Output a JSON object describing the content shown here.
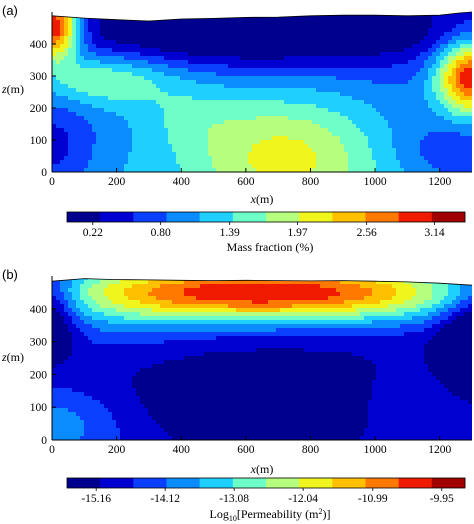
{
  "chart_data": [
    {
      "type": "heatmap",
      "panel_label": "(a)",
      "x_label_var": "x",
      "x_label_unit": "(m)",
      "y_label_var": "z",
      "y_label_unit": "(m)",
      "xlim": [
        0,
        1300
      ],
      "ylim": [
        0,
        500
      ],
      "x_ticks": [
        "0",
        "200",
        "400",
        "600",
        "800",
        "1000",
        "1200"
      ],
      "x_tick_values": [
        0,
        200,
        400,
        600,
        800,
        1000,
        1200
      ],
      "y_ticks": [
        "0",
        "100",
        "200",
        "300",
        "400"
      ],
      "y_tick_values": [
        0,
        100,
        200,
        300,
        400
      ],
      "colorbar_title": "Mass fraction (%)",
      "colorbar_tick_labels": [
        "0.22",
        "0.80",
        "1.39",
        "1.97",
        "2.56",
        "3.14"
      ],
      "colorbar_tick_values": [
        0.22,
        0.8,
        1.39,
        1.97,
        2.56,
        3.14
      ],
      "colorbar_range": [
        0.0,
        3.4
      ],
      "colormap": "jet",
      "levels": 12,
      "surface_topography": [
        [
          0,
          488
        ],
        [
          100,
          481
        ],
        [
          200,
          476
        ],
        [
          300,
          472
        ],
        [
          400,
          478
        ],
        [
          500,
          480
        ],
        [
          600,
          483
        ],
        [
          700,
          484
        ],
        [
          800,
          488
        ],
        [
          900,
          490
        ],
        [
          1000,
          490
        ],
        [
          1100,
          488
        ],
        [
          1200,
          490
        ],
        [
          1260,
          497
        ],
        [
          1300,
          500
        ]
      ],
      "features": [
        {
          "kind": "peak",
          "x": 10,
          "z": 460,
          "value": 3.3,
          "sx": 60,
          "sz": 75
        },
        {
          "kind": "peak",
          "x": 1300,
          "z": 300,
          "value": 3.0,
          "sx": 80,
          "sz": 85
        },
        {
          "kind": "peak",
          "x": 720,
          "z": 70,
          "value": 2.1,
          "sx": 170,
          "sz": 110
        },
        {
          "kind": "low",
          "x": 650,
          "z": 420,
          "value": 0.12
        },
        {
          "kind": "low",
          "x": 0,
          "z": 70,
          "value": 0.3
        },
        {
          "kind": "low",
          "x": 1250,
          "z": 60,
          "value": 0.6
        }
      ]
    },
    {
      "type": "heatmap",
      "panel_label": "(b)",
      "x_label_var": "x",
      "x_label_unit": "(m)",
      "y_label_var": "z",
      "y_label_unit": "(m)",
      "xlim": [
        0,
        1300
      ],
      "ylim": [
        0,
        500
      ],
      "x_ticks": [
        "0",
        "200",
        "400",
        "600",
        "800",
        "1000",
        "1200"
      ],
      "x_tick_values": [
        0,
        200,
        400,
        600,
        800,
        1000,
        1200
      ],
      "y_ticks": [
        "0",
        "100",
        "200",
        "300",
        "400"
      ],
      "y_tick_values": [
        0,
        100,
        200,
        300,
        400
      ],
      "colorbar_title_prefix": "Log",
      "colorbar_title_sub": "10",
      "colorbar_title_main": "[Permeability (m",
      "colorbar_title_sup": "2",
      "colorbar_title_end": ")]",
      "colorbar_tick_labels": [
        "-15.16",
        "-14.12",
        "-13.08",
        "-12.04",
        "-10.99",
        "-9.95"
      ],
      "colorbar_tick_values": [
        -15.16,
        -14.12,
        -13.08,
        -12.04,
        -10.99,
        -9.95
      ],
      "colorbar_range": [
        -15.6,
        -9.6
      ],
      "colormap": "jet",
      "levels": 12,
      "surface_topography": [
        [
          0,
          484
        ],
        [
          100,
          492
        ],
        [
          200,
          489
        ],
        [
          300,
          488
        ],
        [
          400,
          487
        ],
        [
          500,
          486
        ],
        [
          600,
          487
        ],
        [
          700,
          486
        ],
        [
          800,
          485
        ],
        [
          900,
          486
        ],
        [
          1000,
          484
        ],
        [
          1100,
          482
        ],
        [
          1200,
          478
        ],
        [
          1300,
          472
        ]
      ],
      "features": [
        {
          "kind": "high",
          "x": 500,
          "z": 445,
          "value": -9.9
        },
        {
          "kind": "high",
          "x": 750,
          "z": 440,
          "value": -10.0
        },
        {
          "kind": "low",
          "x": 0,
          "z": 380,
          "value": -15.4
        },
        {
          "kind": "low",
          "x": 1300,
          "z": 300,
          "value": -15.3
        },
        {
          "kind": "low",
          "x": 700,
          "z": 130,
          "value": -15.3
        },
        {
          "kind": "mid",
          "x": 0,
          "z": 40,
          "value": -12.2
        }
      ]
    }
  ]
}
